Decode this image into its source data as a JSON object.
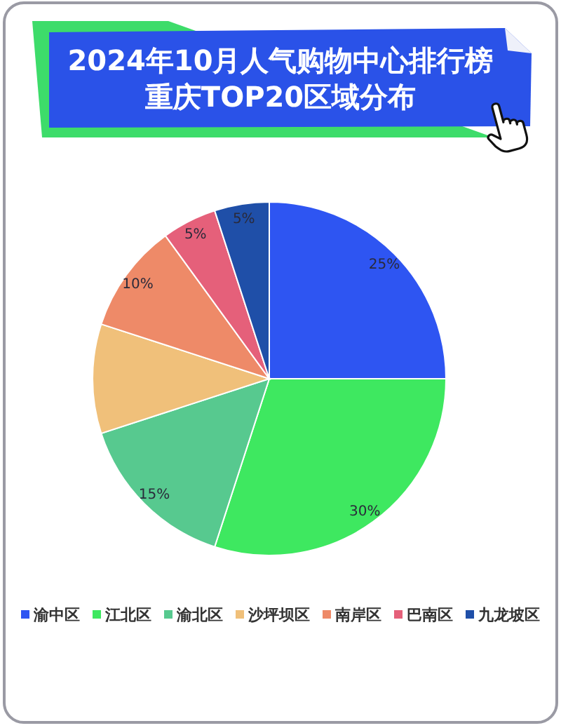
{
  "chart_data": {
    "type": "pie",
    "title": "2024年10月人气购物中心排行榜",
    "subtitle": "重庆TOP20区域分布",
    "categories": [
      "渝中区",
      "江北区",
      "渝北区",
      "沙坪坝区",
      "南岸区",
      "巴南区",
      "九龙坡区"
    ],
    "values": [
      25,
      30,
      15,
      10,
      10,
      5,
      5
    ],
    "colors": [
      "#2e55f2",
      "#3ee860",
      "#57c98f",
      "#f0c07a",
      "#ee8a68",
      "#e5607a",
      "#1f4fa8"
    ],
    "value_labels": [
      "25%",
      "30%",
      "15%",
      null,
      "10%",
      "5%",
      "5%"
    ],
    "legend": "bottom"
  }
}
